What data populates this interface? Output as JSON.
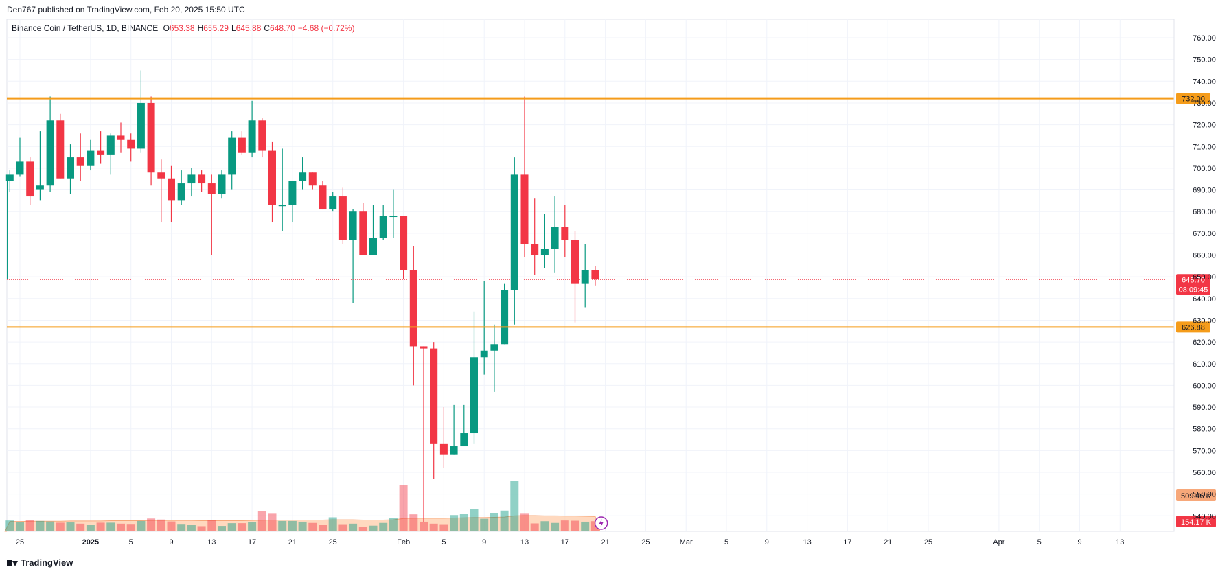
{
  "header": {
    "publisher": "Den767",
    "publish_text": "Den767 published on TradingView.com, Feb 20, 2025 15:50 UTC"
  },
  "legend": {
    "symbol": "Binance Coin / TetherUS, 1D, BINANCE",
    "o_label": "O",
    "o_value": "653.38",
    "h_label": "H",
    "h_value": "655.29",
    "l_label": "L",
    "l_value": "645.88",
    "c_label": "C",
    "c_value": "648.70",
    "change": "−4.68 (−0.72%)"
  },
  "footer": {
    "brand": "TradingView"
  },
  "colors": {
    "up": "#089981",
    "down": "#f23645",
    "level_line": "#f59c1a",
    "price_line": "#f23645",
    "volume_ma": "#ffccaa",
    "grid": "#f0f3fa"
  },
  "chart_data": {
    "type": "candlestick",
    "y_axis": {
      "min": 536,
      "max": 766,
      "ticks": [
        "760.00",
        "750.00",
        "740.00",
        "730.00",
        "720.00",
        "710.00",
        "700.00",
        "690.00",
        "680.00",
        "670.00",
        "660.00",
        "650.00",
        "640.00",
        "630.00",
        "620.00",
        "610.00",
        "600.00",
        "590.00",
        "580.00",
        "570.00",
        "560.00",
        "550.00",
        "540.00"
      ]
    },
    "x_axis": {
      "labels": [
        {
          "label": "25",
          "day": 0
        },
        {
          "label": "2025",
          "day": 7
        },
        {
          "label": "5",
          "day": 11
        },
        {
          "label": "9",
          "day": 15
        },
        {
          "label": "13",
          "day": 19
        },
        {
          "label": "17",
          "day": 23
        },
        {
          "label": "21",
          "day": 27
        },
        {
          "label": "25",
          "day": 31
        },
        {
          "label": "Feb",
          "day": 38
        },
        {
          "label": "5",
          "day": 42
        },
        {
          "label": "9",
          "day": 46
        },
        {
          "label": "13",
          "day": 50
        },
        {
          "label": "17",
          "day": 54
        },
        {
          "label": "21",
          "day": 58
        },
        {
          "label": "25",
          "day": 62
        },
        {
          "label": "Mar",
          "day": 66
        },
        {
          "label": "5",
          "day": 70
        },
        {
          "label": "9",
          "day": 74
        },
        {
          "label": "13",
          "day": 78
        },
        {
          "label": "17",
          "day": 82
        },
        {
          "label": "21",
          "day": 86
        },
        {
          "label": "25",
          "day": 90
        },
        {
          "label": "Apr",
          "day": 97
        },
        {
          "label": "5",
          "day": 101
        },
        {
          "label": "9",
          "day": 105
        },
        {
          "label": "13",
          "day": 109
        }
      ]
    },
    "candles": [
      {
        "o": 694,
        "h": 699,
        "l": 689,
        "c": 697
      },
      {
        "o": 697,
        "h": 714,
        "l": 696,
        "c": 703
      },
      {
        "o": 703,
        "h": 705,
        "l": 683,
        "c": 687
      },
      {
        "o": 690,
        "h": 717,
        "l": 685,
        "c": 692
      },
      {
        "o": 692,
        "h": 733,
        "l": 689,
        "c": 722
      },
      {
        "o": 722,
        "h": 725,
        "l": 695,
        "c": 695
      },
      {
        "o": 695,
        "h": 711,
        "l": 688,
        "c": 705
      },
      {
        "o": 705,
        "h": 716,
        "l": 694,
        "c": 701
      },
      {
        "o": 701,
        "h": 713,
        "l": 699,
        "c": 708
      },
      {
        "o": 708,
        "h": 717,
        "l": 702,
        "c": 706
      },
      {
        "o": 706,
        "h": 716,
        "l": 697,
        "c": 715
      },
      {
        "o": 715,
        "h": 721,
        "l": 707,
        "c": 713
      },
      {
        "o": 713,
        "h": 716,
        "l": 703,
        "c": 709
      },
      {
        "o": 709,
        "h": 745,
        "l": 707,
        "c": 730
      },
      {
        "o": 730,
        "h": 733,
        "l": 692,
        "c": 698
      },
      {
        "o": 698,
        "h": 704,
        "l": 675,
        "c": 695
      },
      {
        "o": 695,
        "h": 701,
        "l": 675,
        "c": 685
      },
      {
        "o": 685,
        "h": 699,
        "l": 683,
        "c": 693
      },
      {
        "o": 693,
        "h": 700,
        "l": 687,
        "c": 697
      },
      {
        "o": 697,
        "h": 699,
        "l": 689,
        "c": 693
      },
      {
        "o": 693,
        "h": 697,
        "l": 660,
        "c": 688
      },
      {
        "o": 688,
        "h": 699,
        "l": 686,
        "c": 697
      },
      {
        "o": 697,
        "h": 717,
        "l": 690,
        "c": 714
      },
      {
        "o": 714,
        "h": 717,
        "l": 706,
        "c": 707
      },
      {
        "o": 707,
        "h": 731,
        "l": 705,
        "c": 722
      },
      {
        "o": 722,
        "h": 723,
        "l": 705,
        "c": 708
      },
      {
        "o": 708,
        "h": 712,
        "l": 675,
        "c": 683
      },
      {
        "o": 683,
        "h": 709,
        "l": 671,
        "c": 683
      },
      {
        "o": 683,
        "h": 694,
        "l": 675,
        "c": 694
      },
      {
        "o": 694,
        "h": 705,
        "l": 690,
        "c": 698
      },
      {
        "o": 698,
        "h": 698,
        "l": 690,
        "c": 692
      },
      {
        "o": 692,
        "h": 694,
        "l": 681,
        "c": 681
      },
      {
        "o": 681,
        "h": 689,
        "l": 680,
        "c": 687
      },
      {
        "o": 687,
        "h": 691,
        "l": 665,
        "c": 667
      },
      {
        "o": 667,
        "h": 681,
        "l": 638,
        "c": 680
      },
      {
        "o": 680,
        "h": 684,
        "l": 660,
        "c": 660
      },
      {
        "o": 660,
        "h": 683,
        "l": 660,
        "c": 668
      },
      {
        "o": 668,
        "h": 683,
        "l": 667,
        "c": 678
      },
      {
        "o": 678,
        "h": 690,
        "l": 668,
        "c": 678
      },
      {
        "o": 678,
        "h": 678,
        "l": 649,
        "c": 653
      },
      {
        "o": 653,
        "h": 664,
        "l": 600,
        "c": 618
      },
      {
        "o": 618,
        "h": 618,
        "l": 537,
        "c": 617
      },
      {
        "o": 617,
        "h": 620,
        "l": 557,
        "c": 573
      },
      {
        "o": 573,
        "h": 590,
        "l": 562,
        "c": 568
      },
      {
        "o": 568,
        "h": 591,
        "l": 568,
        "c": 572
      },
      {
        "o": 572,
        "h": 591,
        "l": 572,
        "c": 578
      },
      {
        "o": 578,
        "h": 634,
        "l": 573,
        "c": 613
      },
      {
        "o": 613,
        "h": 648,
        "l": 605,
        "c": 616
      },
      {
        "o": 616,
        "h": 628,
        "l": 597,
        "c": 619
      },
      {
        "o": 619,
        "h": 647,
        "l": 619,
        "c": 644
      },
      {
        "o": 644,
        "h": 705,
        "l": 628,
        "c": 697
      },
      {
        "o": 697,
        "h": 733,
        "l": 659,
        "c": 665
      },
      {
        "o": 665,
        "h": 686,
        "l": 651,
        "c": 660
      },
      {
        "o": 660,
        "h": 679,
        "l": 654,
        "c": 663
      },
      {
        "o": 663,
        "h": 687,
        "l": 652,
        "c": 673
      },
      {
        "o": 673,
        "h": 683,
        "l": 659,
        "c": 667
      },
      {
        "o": 667,
        "h": 671,
        "l": 629,
        "c": 647
      },
      {
        "o": 647,
        "h": 665,
        "l": 636,
        "c": 653
      },
      {
        "o": 653,
        "h": 655,
        "l": 646,
        "c": 649
      }
    ],
    "volumes": [
      0.44,
      0.37,
      0.46,
      0.42,
      0.4,
      0.35,
      0.36,
      0.31,
      0.26,
      0.35,
      0.35,
      0.31,
      0.3,
      0.42,
      0.52,
      0.48,
      0.4,
      0.3,
      0.27,
      0.21,
      0.46,
      0.22,
      0.33,
      0.33,
      0.38,
      0.81,
      0.74,
      0.42,
      0.42,
      0.39,
      0.34,
      0.25,
      0.57,
      0.29,
      0.31,
      0.17,
      0.23,
      0.34,
      0.55,
      1.88,
      0.69,
      0.39,
      0.31,
      0.29,
      0.66,
      0.71,
      0.9,
      0.51,
      0.75,
      0.84,
      2.05,
      0.74,
      0.32,
      0.41,
      0.34,
      0.44,
      0.43,
      0.39,
      0.41
    ],
    "volume_ma": [
      0.4,
      0.4,
      0.41,
      0.41,
      0.41,
      0.41,
      0.42,
      0.42,
      0.42,
      0.42,
      0.43,
      0.43,
      0.43,
      0.43,
      0.44,
      0.44,
      0.44,
      0.44,
      0.44,
      0.43,
      0.43,
      0.43,
      0.43,
      0.43,
      0.44,
      0.45,
      0.46,
      0.46,
      0.46,
      0.46,
      0.46,
      0.46,
      0.47,
      0.47,
      0.47,
      0.46,
      0.46,
      0.46,
      0.47,
      0.52,
      0.53,
      0.53,
      0.53,
      0.53,
      0.54,
      0.55,
      0.56,
      0.56,
      0.57,
      0.58,
      0.63,
      0.64,
      0.64,
      0.63,
      0.63,
      0.62,
      0.62,
      0.61,
      0.6
    ],
    "levels": [
      {
        "price": 732,
        "label": "732.00"
      },
      {
        "price": 626.88,
        "label": "626.88"
      }
    ],
    "current_price": {
      "price": 648.7,
      "label": "648.70",
      "countdown": "08:09:45"
    },
    "volume_ma_label": "509.46 K",
    "volume_label": "154.17 K"
  }
}
